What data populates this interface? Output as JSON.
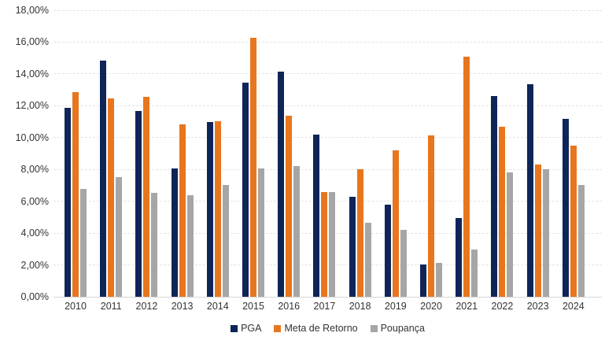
{
  "chart_data": {
    "type": "bar",
    "categories": [
      "2010",
      "2011",
      "2012",
      "2013",
      "2014",
      "2015",
      "2016",
      "2017",
      "2018",
      "2019",
      "2020",
      "2021",
      "2022",
      "2023",
      "2024"
    ],
    "series": [
      {
        "name": "PGA",
        "color": "#0e2558",
        "values": [
          11.87,
          14.85,
          11.67,
          8.05,
          10.97,
          13.45,
          14.15,
          10.2,
          6.28,
          5.8,
          2.05,
          4.97,
          12.6,
          13.35,
          11.2
        ]
      },
      {
        "name": "Meta de Retorno",
        "color": "#e8761e",
        "values": [
          12.86,
          12.45,
          12.57,
          10.83,
          11.03,
          16.29,
          11.36,
          6.6,
          8.0,
          9.2,
          10.15,
          15.1,
          10.68,
          8.3,
          9.5
        ]
      },
      {
        "name": "Poupança",
        "color": "#a6a6a6",
        "values": [
          6.8,
          7.5,
          6.55,
          6.4,
          7.02,
          8.07,
          8.22,
          6.56,
          4.65,
          4.21,
          2.12,
          2.99,
          7.83,
          8.03,
          7.0
        ]
      }
    ],
    "title": "",
    "xlabel": "",
    "ylabel": "",
    "ylim": [
      0,
      18
    ],
    "yticks": [
      0,
      2,
      4,
      6,
      8,
      10,
      12,
      14,
      16,
      18
    ],
    "ytick_labels": [
      "0,00%",
      "2,00%",
      "4,00%",
      "6,00%",
      "8,00%",
      "10,00%",
      "12,00%",
      "14,00%",
      "16,00%",
      "18,00%"
    ],
    "grid": "horizontal-dashed",
    "legend_position": "bottom-center"
  },
  "legend": {
    "items": [
      {
        "label": "PGA"
      },
      {
        "label": "Meta de Retorno"
      },
      {
        "label": "Poupança"
      }
    ]
  }
}
